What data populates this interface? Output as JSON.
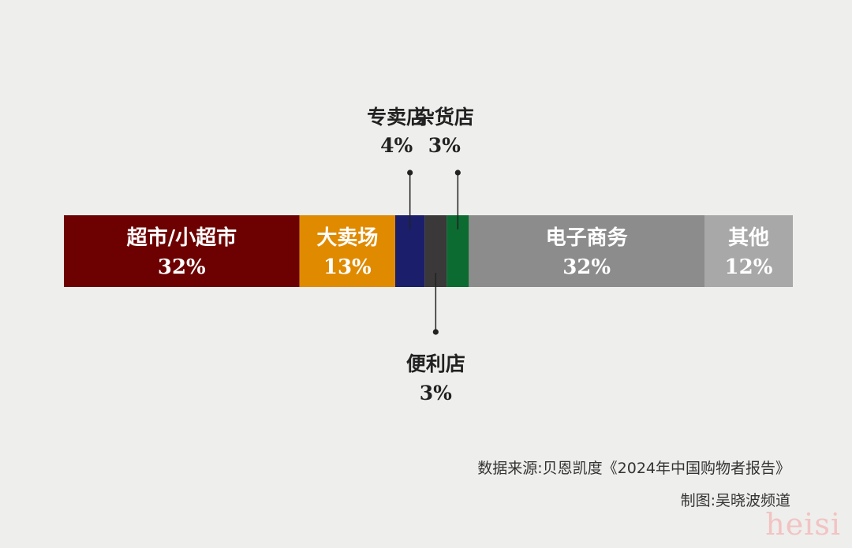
{
  "chart_data": {
    "type": "bar",
    "subtype": "stacked-100-horizontal",
    "unit": "%",
    "segments": [
      {
        "name": "超市/小超市",
        "value": 32,
        "label": "32%",
        "color": "#6d0000",
        "label_position": "inside"
      },
      {
        "name": "大卖场",
        "value": 13,
        "label": "13%",
        "color": "#e08a00",
        "label_position": "inside"
      },
      {
        "name": "专卖店",
        "value": 4,
        "label": "4%",
        "color": "#1a1e6b",
        "label_position": "above"
      },
      {
        "name": "便利店",
        "value": 3,
        "label": "3%",
        "color": "#3a3838",
        "label_position": "below"
      },
      {
        "name": "杂货店",
        "value": 3,
        "label": "3%",
        "color": "#0b6b31",
        "label_position": "above"
      },
      {
        "name": "电子商务",
        "value": 32,
        "label": "32%",
        "color": "#8c8c8c",
        "label_position": "inside"
      },
      {
        "name": "其他",
        "value": 12,
        "label": "12%",
        "color": "#a8a8a8",
        "label_position": "inside"
      }
    ],
    "grid": false,
    "legend": "none"
  },
  "source": "数据来源:贝恩凯度《2024年中国购物者报告》",
  "credit": "制图:吴晓波频道",
  "watermark": "heisi"
}
